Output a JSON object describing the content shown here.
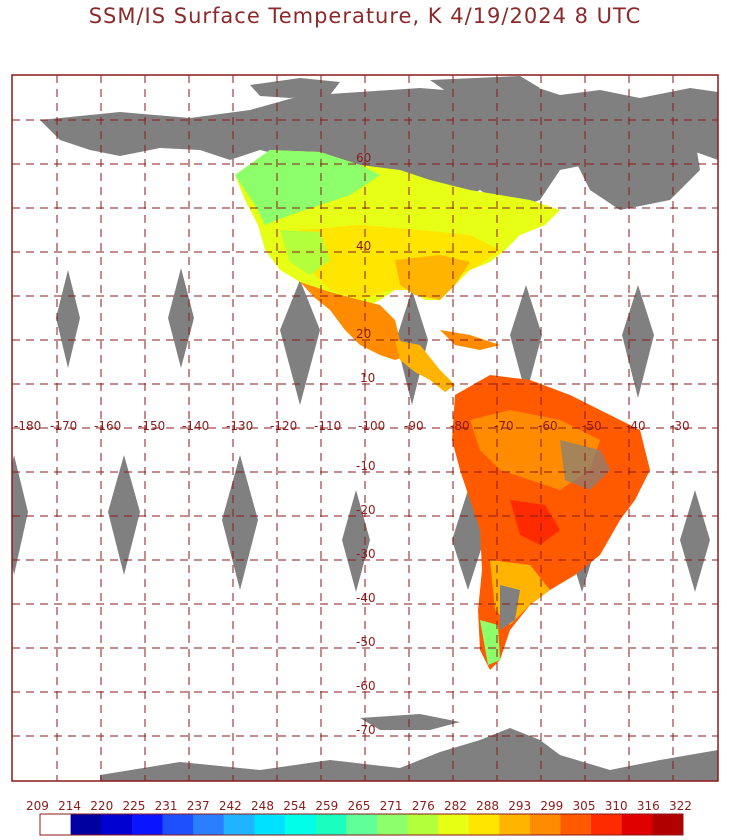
{
  "title": "SSM/IS Surface Temperature, K 4/19/2024 8 UTC",
  "map": {
    "projection": "lat-lon grid, Americas",
    "lon_labels": [
      "-180",
      "-170",
      "-160",
      "-150",
      "-140",
      "-130",
      "-120",
      "-110",
      "-100",
      "-90",
      "-80",
      "-70",
      "-60",
      "-50",
      "-40",
      "-30"
    ],
    "lat_labels": [
      "60",
      "40",
      "20",
      "10",
      "-10",
      "-20",
      "-30",
      "-40",
      "-50",
      "-60",
      "-70"
    ],
    "colors": {
      "frame": "#8b1a1a",
      "grid": "#8b1a1a",
      "no_data": "#808080",
      "coast": "#8b1a1a",
      "ocean": "#ffffff"
    }
  },
  "colorbar": {
    "ticks": [
      "209",
      "214",
      "220",
      "225",
      "231",
      "237",
      "242",
      "248",
      "254",
      "259",
      "265",
      "271",
      "276",
      "282",
      "288",
      "293",
      "299",
      "305",
      "310",
      "316",
      "322"
    ],
    "colors": [
      "#ffffff",
      "#0000a0",
      "#0000d0",
      "#0a14ff",
      "#1e50ff",
      "#2a7fff",
      "#1eb4ff",
      "#00e0ff",
      "#00ffe6",
      "#1affc0",
      "#60ff9a",
      "#8cff6a",
      "#b4ff3c",
      "#e6ff14",
      "#ffe600",
      "#ffb400",
      "#ff8c00",
      "#ff5a00",
      "#ff2a00",
      "#e00000",
      "#b00000"
    ]
  }
}
